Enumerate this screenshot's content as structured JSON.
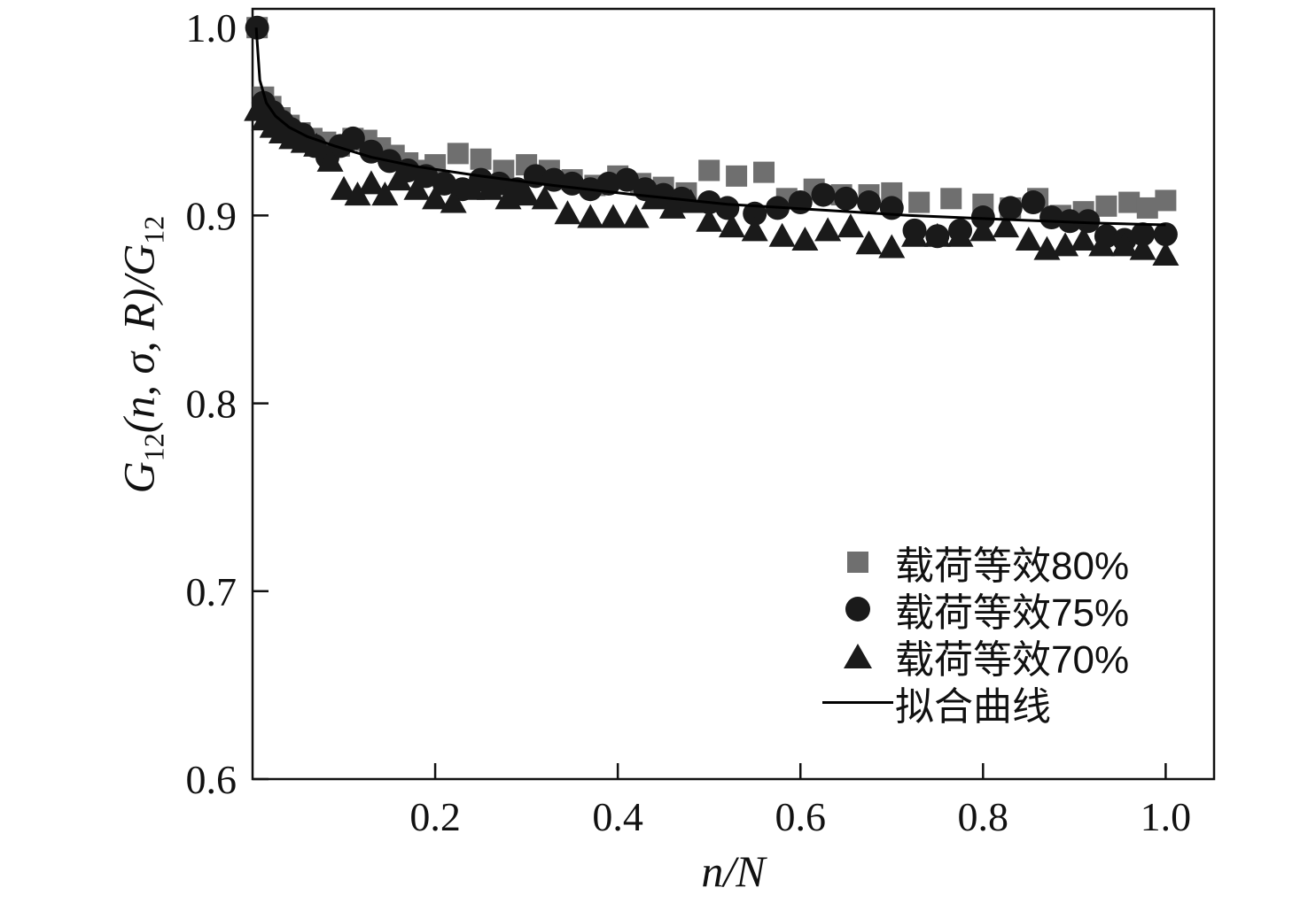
{
  "chart_data": {
    "type": "scatter",
    "title": "",
    "xlabel": "n/N",
    "ylabel": "G12(n, σ, R)/G12",
    "ylabel_parts": {
      "g1": "G",
      "s1": "12",
      "mid": "(n, σ, R)/",
      "g2": "G",
      "s2": "12"
    },
    "xlim": [
      0,
      1.053
    ],
    "ylim": [
      0.6,
      1.01
    ],
    "grid": false,
    "legend_position": "inside lower right",
    "x_ticks": {
      "values": [
        0.2,
        0.4,
        0.6,
        0.8,
        1.0
      ],
      "labels": [
        "0.2",
        "0.4",
        "0.6",
        "0.8",
        "1.0"
      ]
    },
    "y_ticks": {
      "values": [
        1.0,
        0.9,
        0.8,
        0.7,
        0.6
      ],
      "labels": [
        "1.0",
        "0.9",
        "0.8",
        "0.7",
        "0.6"
      ]
    },
    "series": [
      {
        "name": "载荷等效80%",
        "marker": "square",
        "color": "#6f6f6f",
        "points": [
          [
            0.005,
            1.0
          ],
          [
            0.012,
            0.963
          ],
          [
            0.02,
            0.958
          ],
          [
            0.03,
            0.952
          ],
          [
            0.04,
            0.948
          ],
          [
            0.052,
            0.944
          ],
          [
            0.065,
            0.941
          ],
          [
            0.08,
            0.939
          ],
          [
            0.095,
            0.937
          ],
          [
            0.11,
            0.941
          ],
          [
            0.125,
            0.94
          ],
          [
            0.14,
            0.936
          ],
          [
            0.155,
            0.932
          ],
          [
            0.17,
            0.928
          ],
          [
            0.185,
            0.924
          ],
          [
            0.2,
            0.927
          ],
          [
            0.225,
            0.933
          ],
          [
            0.25,
            0.93
          ],
          [
            0.275,
            0.924
          ],
          [
            0.3,
            0.927
          ],
          [
            0.325,
            0.924
          ],
          [
            0.35,
            0.919
          ],
          [
            0.375,
            0.916
          ],
          [
            0.4,
            0.921
          ],
          [
            0.425,
            0.917
          ],
          [
            0.45,
            0.915
          ],
          [
            0.475,
            0.912
          ],
          [
            0.5,
            0.924
          ],
          [
            0.53,
            0.921
          ],
          [
            0.56,
            0.923
          ],
          [
            0.585,
            0.909
          ],
          [
            0.615,
            0.914
          ],
          [
            0.645,
            0.911
          ],
          [
            0.675,
            0.911
          ],
          [
            0.7,
            0.912
          ],
          [
            0.73,
            0.907
          ],
          [
            0.765,
            0.909
          ],
          [
            0.8,
            0.906
          ],
          [
            0.83,
            0.904
          ],
          [
            0.86,
            0.909
          ],
          [
            0.885,
            0.9
          ],
          [
            0.91,
            0.902
          ],
          [
            0.935,
            0.905
          ],
          [
            0.96,
            0.907
          ],
          [
            0.98,
            0.904
          ],
          [
            1.0,
            0.908
          ]
        ]
      },
      {
        "name": "载荷等效75%",
        "marker": "circle",
        "color": "#1a1a1a",
        "points": [
          [
            0.005,
            1.0
          ],
          [
            0.012,
            0.96
          ],
          [
            0.022,
            0.955
          ],
          [
            0.032,
            0.95
          ],
          [
            0.042,
            0.946
          ],
          [
            0.055,
            0.943
          ],
          [
            0.068,
            0.937
          ],
          [
            0.082,
            0.931
          ],
          [
            0.096,
            0.937
          ],
          [
            0.11,
            0.941
          ],
          [
            0.13,
            0.934
          ],
          [
            0.15,
            0.929
          ],
          [
            0.17,
            0.924
          ],
          [
            0.19,
            0.921
          ],
          [
            0.21,
            0.917
          ],
          [
            0.23,
            0.914
          ],
          [
            0.25,
            0.919
          ],
          [
            0.27,
            0.917
          ],
          [
            0.29,
            0.914
          ],
          [
            0.31,
            0.921
          ],
          [
            0.33,
            0.919
          ],
          [
            0.35,
            0.917
          ],
          [
            0.37,
            0.914
          ],
          [
            0.39,
            0.917
          ],
          [
            0.41,
            0.919
          ],
          [
            0.43,
            0.914
          ],
          [
            0.45,
            0.911
          ],
          [
            0.47,
            0.909
          ],
          [
            0.5,
            0.907
          ],
          [
            0.52,
            0.904
          ],
          [
            0.55,
            0.901
          ],
          [
            0.575,
            0.904
          ],
          [
            0.6,
            0.907
          ],
          [
            0.625,
            0.911
          ],
          [
            0.65,
            0.909
          ],
          [
            0.675,
            0.907
          ],
          [
            0.7,
            0.904
          ],
          [
            0.725,
            0.892
          ],
          [
            0.75,
            0.889
          ],
          [
            0.775,
            0.892
          ],
          [
            0.8,
            0.899
          ],
          [
            0.83,
            0.904
          ],
          [
            0.855,
            0.907
          ],
          [
            0.875,
            0.899
          ],
          [
            0.895,
            0.897
          ],
          [
            0.915,
            0.897
          ],
          [
            0.935,
            0.889
          ],
          [
            0.955,
            0.887
          ],
          [
            0.975,
            0.89
          ],
          [
            1.0,
            0.89
          ]
        ]
      },
      {
        "name": "载荷等效70%",
        "marker": "triangle",
        "color": "#1a1a1a",
        "points": [
          [
            0.005,
            0.956
          ],
          [
            0.013,
            0.951
          ],
          [
            0.022,
            0.947
          ],
          [
            0.032,
            0.944
          ],
          [
            0.043,
            0.941
          ],
          [
            0.056,
            0.939
          ],
          [
            0.07,
            0.937
          ],
          [
            0.085,
            0.929
          ],
          [
            0.1,
            0.914
          ],
          [
            0.115,
            0.911
          ],
          [
            0.13,
            0.917
          ],
          [
            0.145,
            0.911
          ],
          [
            0.16,
            0.919
          ],
          [
            0.18,
            0.914
          ],
          [
            0.2,
            0.909
          ],
          [
            0.22,
            0.907
          ],
          [
            0.24,
            0.914
          ],
          [
            0.26,
            0.914
          ],
          [
            0.28,
            0.909
          ],
          [
            0.3,
            0.911
          ],
          [
            0.32,
            0.909
          ],
          [
            0.345,
            0.901
          ],
          [
            0.37,
            0.899
          ],
          [
            0.395,
            0.899
          ],
          [
            0.42,
            0.899
          ],
          [
            0.44,
            0.909
          ],
          [
            0.46,
            0.904
          ],
          [
            0.48,
            0.907
          ],
          [
            0.5,
            0.897
          ],
          [
            0.525,
            0.894
          ],
          [
            0.55,
            0.892
          ],
          [
            0.58,
            0.889
          ],
          [
            0.605,
            0.887
          ],
          [
            0.63,
            0.892
          ],
          [
            0.655,
            0.894
          ],
          [
            0.675,
            0.885
          ],
          [
            0.7,
            0.883
          ],
          [
            0.725,
            0.889
          ],
          [
            0.75,
            0.889
          ],
          [
            0.775,
            0.889
          ],
          [
            0.8,
            0.892
          ],
          [
            0.825,
            0.894
          ],
          [
            0.85,
            0.887
          ],
          [
            0.87,
            0.882
          ],
          [
            0.89,
            0.884
          ],
          [
            0.91,
            0.887
          ],
          [
            0.93,
            0.884
          ],
          [
            0.955,
            0.884
          ],
          [
            0.975,
            0.882
          ],
          [
            1.0,
            0.879
          ]
        ]
      },
      {
        "name": "拟合曲线",
        "marker": "line",
        "color": "#000000",
        "points": [
          [
            0.004,
            1.0
          ],
          [
            0.008,
            0.972
          ],
          [
            0.015,
            0.96
          ],
          [
            0.025,
            0.953
          ],
          [
            0.04,
            0.947
          ],
          [
            0.06,
            0.942
          ],
          [
            0.09,
            0.937
          ],
          [
            0.13,
            0.931
          ],
          [
            0.18,
            0.926
          ],
          [
            0.25,
            0.921
          ],
          [
            0.33,
            0.916
          ],
          [
            0.42,
            0.911
          ],
          [
            0.52,
            0.906
          ],
          [
            0.62,
            0.903
          ],
          [
            0.72,
            0.9
          ],
          [
            0.82,
            0.898
          ],
          [
            0.92,
            0.896
          ],
          [
            1.0,
            0.895
          ]
        ]
      }
    ]
  }
}
